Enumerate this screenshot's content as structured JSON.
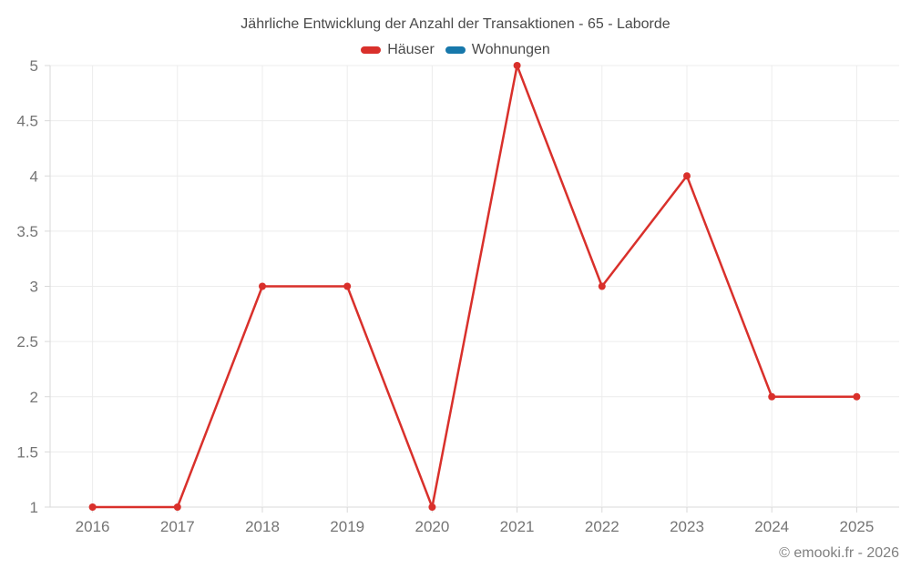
{
  "chart": {
    "title": "Jährliche Entwicklung der Anzahl der Transaktionen - 65 - Laborde"
  },
  "chart_data": {
    "type": "line",
    "title": "Jährliche Entwicklung der Anzahl der Transaktionen - 65 - Laborde",
    "categories": [
      "2016",
      "2017",
      "2018",
      "2019",
      "2020",
      "2021",
      "2022",
      "2023",
      "2024",
      "2025"
    ],
    "series": [
      {
        "name": "Häuser",
        "color": "#d9302b",
        "values": [
          1,
          1,
          3,
          3,
          1,
          5,
          3,
          4,
          2,
          2
        ]
      },
      {
        "name": "Wohnungen",
        "color": "#1778ab",
        "values": []
      }
    ],
    "xlabel": "",
    "ylabel": "",
    "ylim": [
      1,
      5
    ],
    "ytick_step": 0.5,
    "yticks": [
      "1",
      "1.5",
      "2",
      "2.5",
      "3",
      "3.5",
      "4",
      "4.5",
      "5"
    ],
    "grid": true,
    "legend_position": "top",
    "marker_radius": 4,
    "line_width": 2.5
  },
  "style": {
    "grid_color": "#ececec",
    "axis_color": "#d9d9d9",
    "tick_label_color": "#757575",
    "title_color": "#4a4a4a",
    "watermark_color": "#808080"
  },
  "footer": {
    "watermark": "© emooki.fr - 2026"
  }
}
